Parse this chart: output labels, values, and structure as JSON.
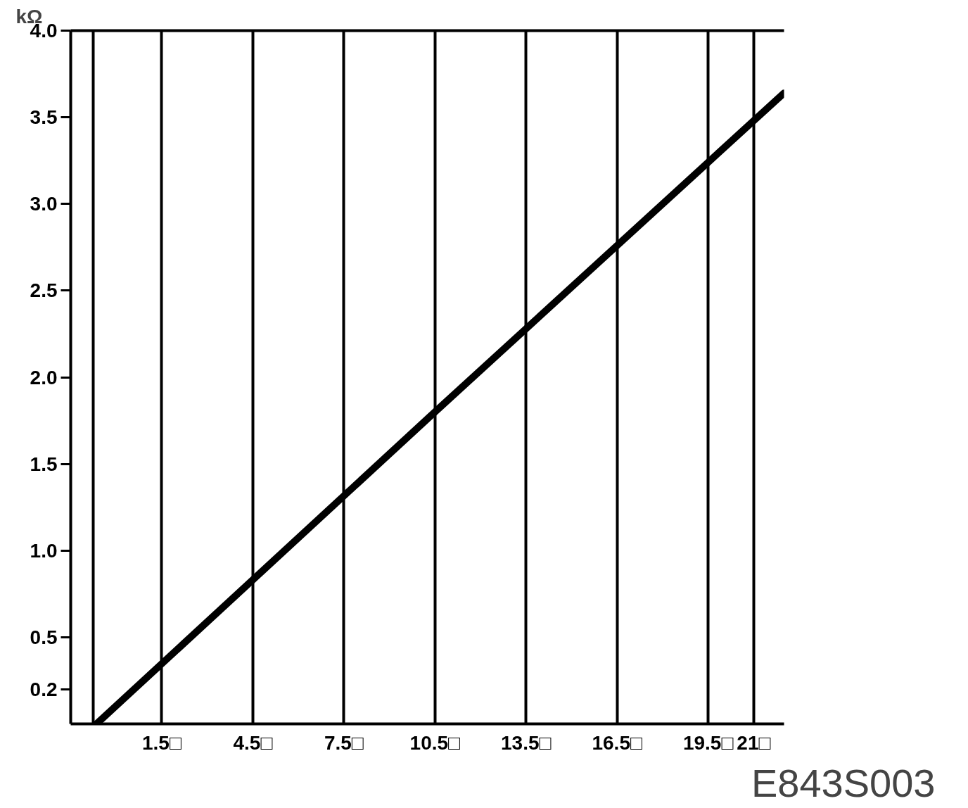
{
  "chart_data": {
    "type": "line",
    "ylabel": "kΩ",
    "x": [
      -0.65,
      10.5,
      22
    ],
    "series": [
      {
        "color": "#000000",
        "values": [
          0,
          1.8,
          3.64
        ]
      }
    ],
    "xlim": [
      -1.5,
      22
    ],
    "ylim": [
      0,
      4
    ],
    "xticks": [
      {
        "value": -0.75,
        "label": null
      },
      {
        "value": 1.5,
        "label": "1.5□"
      },
      {
        "value": 4.5,
        "label": "4.5□"
      },
      {
        "value": 7.5,
        "label": "7.5□"
      },
      {
        "value": 10.5,
        "label": "10.5□"
      },
      {
        "value": 13.5,
        "label": "13.5□"
      },
      {
        "value": 16.5,
        "label": "16.5□"
      },
      {
        "value": 19.5,
        "label": "19.5□"
      },
      {
        "value": 21,
        "label": "21□"
      }
    ],
    "yticks": [
      0.2,
      0.5,
      {
        "value": 1,
        "label": "1.0"
      },
      1.5,
      {
        "value": 2,
        "label": "2.0"
      },
      2.5,
      {
        "value": 3,
        "label": "3.0"
      },
      3.5,
      {
        "value": 4,
        "label": "4.0"
      }
    ],
    "grid": "x",
    "line_style": "solid",
    "annotations": [
      "E843S003"
    ]
  }
}
